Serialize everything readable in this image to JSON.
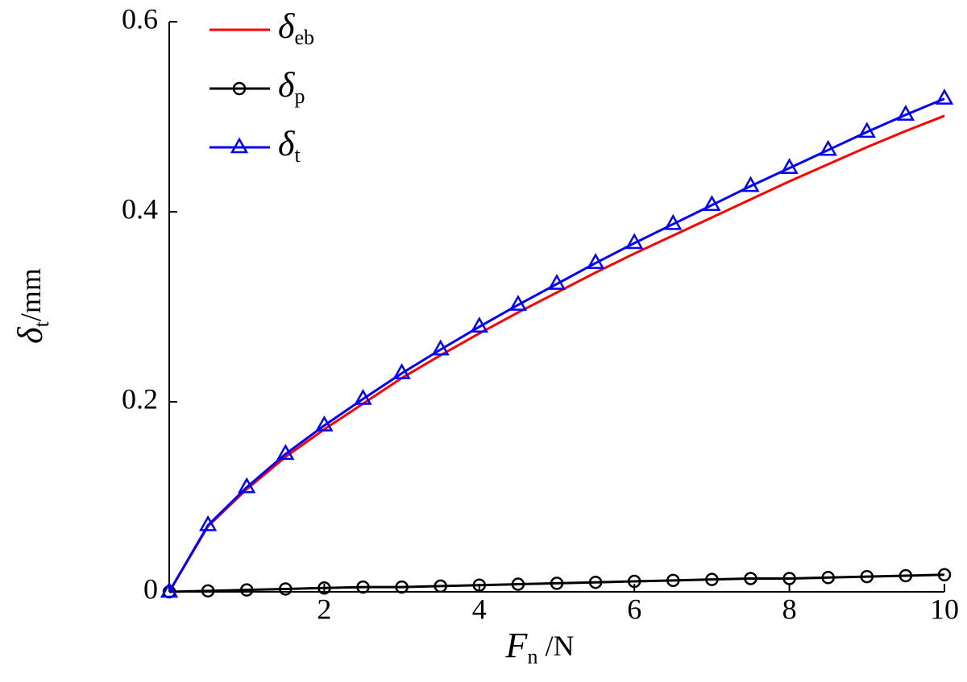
{
  "chart_data": {
    "type": "line",
    "xlabel": "Fn /N",
    "ylabel": "δt/mm",
    "x": [
      0,
      0.5,
      1,
      1.5,
      2,
      2.5,
      3,
      3.5,
      4,
      4.5,
      5,
      5.5,
      6,
      6.5,
      7,
      7.5,
      8,
      8.5,
      9,
      9.5,
      10
    ],
    "series": [
      {
        "name": "δeb",
        "color": "#ff0000",
        "marker": "none",
        "values": [
          0,
          0.069,
          0.108,
          0.142,
          0.171,
          0.198,
          0.225,
          0.249,
          0.272,
          0.294,
          0.315,
          0.336,
          0.356,
          0.375,
          0.394,
          0.413,
          0.432,
          0.45,
          0.468,
          0.485,
          0.501
        ]
      },
      {
        "name": "δp",
        "color": "#000000",
        "marker": "circle",
        "values": [
          0,
          0.001,
          0.002,
          0.003,
          0.004,
          0.005,
          0.005,
          0.006,
          0.007,
          0.008,
          0.009,
          0.01,
          0.011,
          0.012,
          0.013,
          0.014,
          0.014,
          0.015,
          0.016,
          0.017,
          0.018
        ]
      },
      {
        "name": "δt",
        "color": "#0000ff",
        "marker": "triangle",
        "values": [
          0,
          0.07,
          0.11,
          0.145,
          0.175,
          0.203,
          0.23,
          0.255,
          0.279,
          0.302,
          0.324,
          0.346,
          0.367,
          0.387,
          0.407,
          0.427,
          0.446,
          0.465,
          0.484,
          0.502,
          0.519
        ]
      }
    ],
    "xlim": [
      0,
      10
    ],
    "xticks": [
      2,
      4,
      6,
      8,
      10
    ],
    "ylim": [
      0,
      0.6
    ],
    "yticks": [
      0,
      0.2,
      0.4,
      0.6
    ],
    "grid": false,
    "legend": "upper left"
  }
}
